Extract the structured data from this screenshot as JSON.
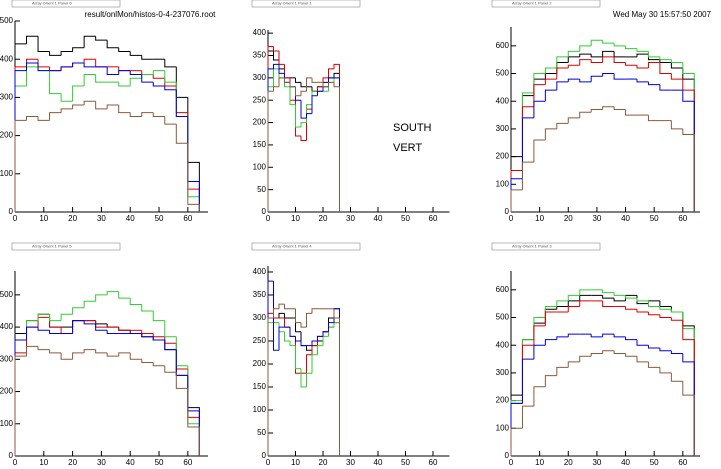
{
  "header": {
    "file": "result/onlMon/histos-0-4-237076.root",
    "date": "Wed May 30 15:57:50 2007"
  },
  "chart_data": [
    {
      "type": "histogram",
      "title": "Array Orient 1 Panel 0",
      "bins": [
        0,
        4,
        8,
        12,
        16,
        20,
        24,
        28,
        32,
        36,
        40,
        44,
        48,
        52,
        56,
        60,
        64
      ],
      "xlim": [
        0,
        67
      ],
      "ylim": [
        0,
        500
      ],
      "xticks": [
        0,
        10,
        20,
        30,
        40,
        50,
        60
      ],
      "yticks": [
        0,
        100,
        200,
        300,
        400,
        500
      ],
      "series": [
        {
          "color": "#000000",
          "values": [
            440,
            460,
            420,
            410,
            420,
            430,
            460,
            450,
            430,
            420,
            410,
            400,
            400,
            380,
            300,
            130
          ]
        },
        {
          "color": "#dd0000",
          "values": [
            380,
            400,
            380,
            370,
            380,
            390,
            400,
            380,
            380,
            370,
            370,
            360,
            350,
            330,
            260,
            60
          ]
        },
        {
          "color": "#33cc33",
          "values": [
            330,
            380,
            370,
            310,
            290,
            330,
            360,
            340,
            340,
            330,
            350,
            360,
            370,
            340,
            250,
            40
          ]
        },
        {
          "color": "#0000dd",
          "values": [
            370,
            390,
            370,
            370,
            380,
            390,
            380,
            380,
            360,
            370,
            360,
            340,
            330,
            320,
            250,
            80
          ]
        },
        {
          "color": "#8b5a3c",
          "values": [
            240,
            250,
            240,
            260,
            270,
            280,
            290,
            270,
            280,
            260,
            250,
            260,
            250,
            230,
            180,
            20
          ]
        }
      ]
    },
    {
      "type": "histogram",
      "title": "Array Orient 1 Panel 1",
      "annotations": [
        "SOUTH",
        "VERT"
      ],
      "bins": [
        0,
        2,
        4,
        6,
        8,
        10,
        12,
        14,
        16,
        18,
        20,
        22,
        24,
        26
      ],
      "xlim": [
        0,
        66
      ],
      "ylim": [
        0,
        407
      ],
      "xticks": [
        0,
        10,
        20,
        30,
        40,
        50,
        60
      ],
      "yticks": [
        0,
        50,
        100,
        150,
        200,
        250,
        300,
        350,
        400
      ],
      "series": [
        {
          "color": "#000000",
          "values": [
            360,
            340,
            320,
            300,
            300,
            290,
            280,
            280,
            270,
            280,
            290,
            300,
            310
          ]
        },
        {
          "color": "#dd0000",
          "values": [
            370,
            360,
            330,
            300,
            250,
            170,
            160,
            230,
            270,
            280,
            300,
            320,
            330
          ]
        },
        {
          "color": "#33cc33",
          "values": [
            280,
            320,
            300,
            280,
            240,
            190,
            200,
            240,
            270,
            270,
            270,
            290,
            300
          ]
        },
        {
          "color": "#0000dd",
          "values": [
            320,
            330,
            310,
            290,
            280,
            250,
            210,
            220,
            260,
            270,
            280,
            300,
            300
          ]
        },
        {
          "color": "#8b5a3c",
          "values": [
            270,
            280,
            300,
            290,
            280,
            260,
            270,
            300,
            290,
            290,
            280,
            290,
            280
          ]
        }
      ]
    },
    {
      "type": "histogram",
      "title": "Array Orient 1 Panel 2",
      "bins": [
        0,
        4,
        8,
        12,
        16,
        20,
        24,
        28,
        32,
        36,
        40,
        44,
        48,
        52,
        56,
        60,
        64
      ],
      "xlim": [
        0,
        66
      ],
      "ylim": [
        0,
        668
      ],
      "xticks": [
        0,
        10,
        20,
        30,
        40,
        50,
        60
      ],
      "yticks": [
        0,
        100,
        200,
        300,
        400,
        500,
        600
      ],
      "series": [
        {
          "color": "#000000",
          "values": [
            200,
            420,
            480,
            500,
            540,
            560,
            570,
            560,
            580,
            560,
            560,
            570,
            550,
            540,
            520,
            480
          ]
        },
        {
          "color": "#33cc33",
          "values": [
            150,
            430,
            500,
            520,
            560,
            580,
            600,
            620,
            610,
            600,
            590,
            580,
            560,
            550,
            540,
            500
          ]
        },
        {
          "color": "#dd0000",
          "values": [
            150,
            380,
            460,
            480,
            520,
            530,
            550,
            540,
            560,
            540,
            530,
            520,
            540,
            500,
            480,
            440
          ]
        },
        {
          "color": "#0000dd",
          "values": [
            120,
            340,
            400,
            440,
            470,
            480,
            470,
            490,
            500,
            480,
            480,
            470,
            460,
            440,
            440,
            400
          ]
        },
        {
          "color": "#8b5a3c",
          "values": [
            80,
            180,
            260,
            300,
            320,
            340,
            360,
            370,
            380,
            370,
            350,
            350,
            330,
            330,
            300,
            280
          ]
        }
      ]
    },
    {
      "type": "histogram",
      "title": "Array Orient 1 Panel 5",
      "bins": [
        0,
        4,
        8,
        12,
        16,
        20,
        24,
        28,
        32,
        36,
        40,
        44,
        48,
        52,
        56,
        60,
        64
      ],
      "xlim": [
        0,
        67
      ],
      "ylim": [
        0,
        574
      ],
      "xticks": [
        0,
        10,
        20,
        30,
        40,
        50,
        60
      ],
      "yticks": [
        0,
        100,
        200,
        300,
        400,
        500
      ],
      "series": [
        {
          "color": "#000000",
          "values": [
            380,
            420,
            440,
            400,
            400,
            420,
            420,
            410,
            400,
            390,
            380,
            370,
            360,
            330,
            250,
            150
          ]
        },
        {
          "color": "#dd0000",
          "values": [
            320,
            400,
            430,
            400,
            380,
            420,
            420,
            400,
            400,
            390,
            390,
            380,
            370,
            350,
            270,
            120
          ]
        },
        {
          "color": "#33cc33",
          "values": [
            360,
            420,
            440,
            420,
            440,
            460,
            480,
            500,
            510,
            490,
            470,
            450,
            420,
            370,
            280,
            100
          ]
        },
        {
          "color": "#0000dd",
          "values": [
            360,
            400,
            390,
            380,
            380,
            420,
            410,
            390,
            380,
            380,
            380,
            370,
            360,
            330,
            250,
            140
          ]
        },
        {
          "color": "#8b5a3c",
          "values": [
            310,
            340,
            330,
            320,
            300,
            320,
            330,
            320,
            310,
            320,
            300,
            290,
            280,
            260,
            210,
            90
          ]
        }
      ]
    },
    {
      "type": "histogram",
      "title": "Array Orient 1 Panel 4",
      "bins": [
        0,
        2,
        4,
        6,
        8,
        10,
        12,
        14,
        16,
        18,
        20,
        22,
        24,
        26
      ],
      "xlim": [
        0,
        66
      ],
      "ylim": [
        0,
        413
      ],
      "xticks": [
        0,
        10,
        20,
        30,
        40,
        50,
        60
      ],
      "yticks": [
        0,
        50,
        100,
        150,
        200,
        250,
        300,
        350,
        400
      ],
      "series": [
        {
          "color": "#000000",
          "values": [
            300,
            300,
            310,
            300,
            300,
            270,
            240,
            230,
            240,
            250,
            270,
            300,
            320
          ]
        },
        {
          "color": "#dd0000",
          "values": [
            310,
            300,
            300,
            280,
            260,
            180,
            180,
            220,
            240,
            260,
            270,
            280,
            290
          ]
        },
        {
          "color": "#33cc33",
          "values": [
            290,
            290,
            270,
            250,
            240,
            190,
            150,
            180,
            220,
            240,
            260,
            280,
            290
          ]
        },
        {
          "color": "#0000dd",
          "values": [
            380,
            230,
            280,
            280,
            260,
            250,
            240,
            240,
            250,
            260,
            270,
            290,
            320
          ]
        },
        {
          "color": "#8b5a3c",
          "values": [
            300,
            320,
            330,
            320,
            320,
            290,
            280,
            310,
            320,
            320,
            320,
            320,
            300
          ]
        }
      ]
    },
    {
      "type": "histogram",
      "title": "Array Orient 1 Panel 3",
      "bins": [
        0,
        4,
        8,
        12,
        16,
        20,
        24,
        28,
        32,
        36,
        40,
        44,
        48,
        52,
        56,
        60,
        64
      ],
      "xlim": [
        0,
        66
      ],
      "ylim": [
        0,
        668
      ],
      "xticks": [
        0,
        10,
        20,
        30,
        40,
        50,
        60
      ],
      "yticks": [
        0,
        100,
        200,
        300,
        400,
        500,
        600
      ],
      "series": [
        {
          "color": "#000000",
          "values": [
            220,
            420,
            480,
            530,
            540,
            560,
            580,
            580,
            570,
            560,
            580,
            550,
            560,
            540,
            520,
            470
          ]
        },
        {
          "color": "#33cc33",
          "values": [
            200,
            420,
            500,
            540,
            560,
            580,
            600,
            600,
            590,
            580,
            570,
            560,
            540,
            530,
            520,
            460
          ]
        },
        {
          "color": "#dd0000",
          "values": [
            190,
            400,
            470,
            520,
            520,
            540,
            560,
            560,
            540,
            540,
            530,
            520,
            510,
            500,
            490,
            420
          ]
        },
        {
          "color": "#0000dd",
          "values": [
            190,
            350,
            400,
            420,
            430,
            440,
            440,
            430,
            440,
            430,
            420,
            400,
            390,
            380,
            370,
            340
          ]
        },
        {
          "color": "#8b5a3c",
          "values": [
            100,
            180,
            250,
            290,
            320,
            340,
            360,
            370,
            380,
            370,
            360,
            340,
            320,
            300,
            270,
            220
          ]
        }
      ]
    }
  ]
}
